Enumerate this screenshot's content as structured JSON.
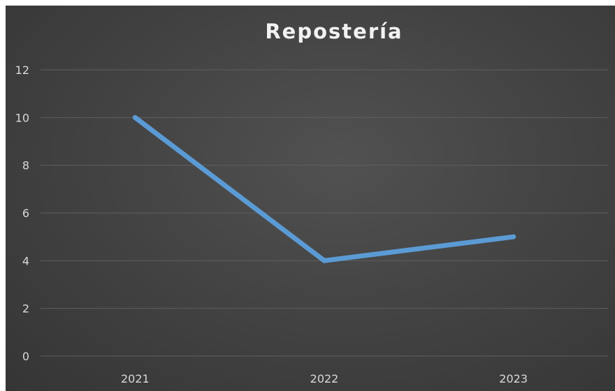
{
  "chart_data": {
    "type": "line",
    "title": "Repostería",
    "xlabel": "",
    "ylabel": "",
    "categories": [
      "2021",
      "2022",
      "2023"
    ],
    "series": [
      {
        "values": [
          10,
          4,
          5
        ],
        "color": "#5b9bd5"
      }
    ],
    "ylim": [
      0,
      12
    ],
    "yticks": [
      "0",
      "2",
      "4",
      "6",
      "8",
      "10",
      "12"
    ],
    "grid": true,
    "legend": "none"
  }
}
